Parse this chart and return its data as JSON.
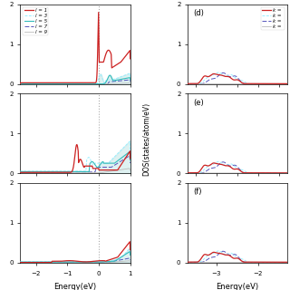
{
  "left_xlim": [
    -2.5,
    1.0
  ],
  "right_xlim": [
    -3.7,
    -1.3
  ],
  "left_ylim": [
    0,
    2.0
  ],
  "right_ylim": [
    0,
    2.0
  ],
  "colors_left": [
    "#cc2222",
    "#99eeff",
    "#33bbbb",
    "#5555bb",
    "#bbbbbb"
  ],
  "colors_right": [
    "#cc2222",
    "#99eeff",
    "#5555bb",
    "#bbbbbb"
  ],
  "legend_left": [
    "l = 1",
    "l = 3",
    "l = 5",
    "l = 7",
    "l = 9"
  ],
  "legend_right": [
    "k = ",
    "k = ",
    "k = ",
    "k = "
  ],
  "panel_labels_right": [
    "(d)",
    "(e)",
    "(f)"
  ],
  "ylabel": "DOS(states/atom/eV)",
  "xlabel_left": "Energy(eV)",
  "xlabel_right": "Energy(eV)",
  "background_color": "#ffffff",
  "shade_color": "#c8e8e8"
}
